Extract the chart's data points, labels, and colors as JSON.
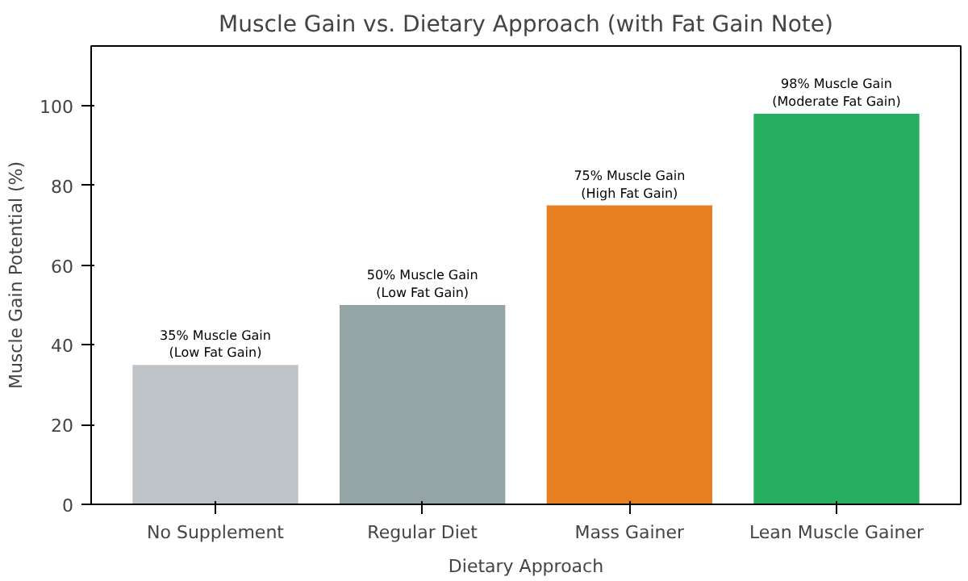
{
  "chart_data": {
    "type": "bar",
    "title": "Muscle Gain vs. Dietary Approach (with Fat Gain Note)",
    "xlabel": "Dietary Approach",
    "ylabel": "Muscle Gain Potential (%)",
    "categories": [
      "No Supplement",
      "Regular Diet",
      "Mass Gainer",
      "Lean Muscle Gainer"
    ],
    "values": [
      35,
      50,
      75,
      98
    ],
    "colors": [
      "#bdc3c7",
      "#95a5a6",
      "#e67e22",
      "#27ae60"
    ],
    "value_labels": [
      "35% Muscle Gain\n(Low Fat Gain)",
      "50% Muscle Gain\n(Low Fat Gain)",
      "75% Muscle Gain\n(High Fat Gain)",
      "98% Muscle Gain\n(Moderate Fat Gain)"
    ],
    "ylim": [
      0,
      115
    ],
    "yticks": [
      0,
      20,
      40,
      60,
      80,
      100
    ],
    "grid": false
  }
}
